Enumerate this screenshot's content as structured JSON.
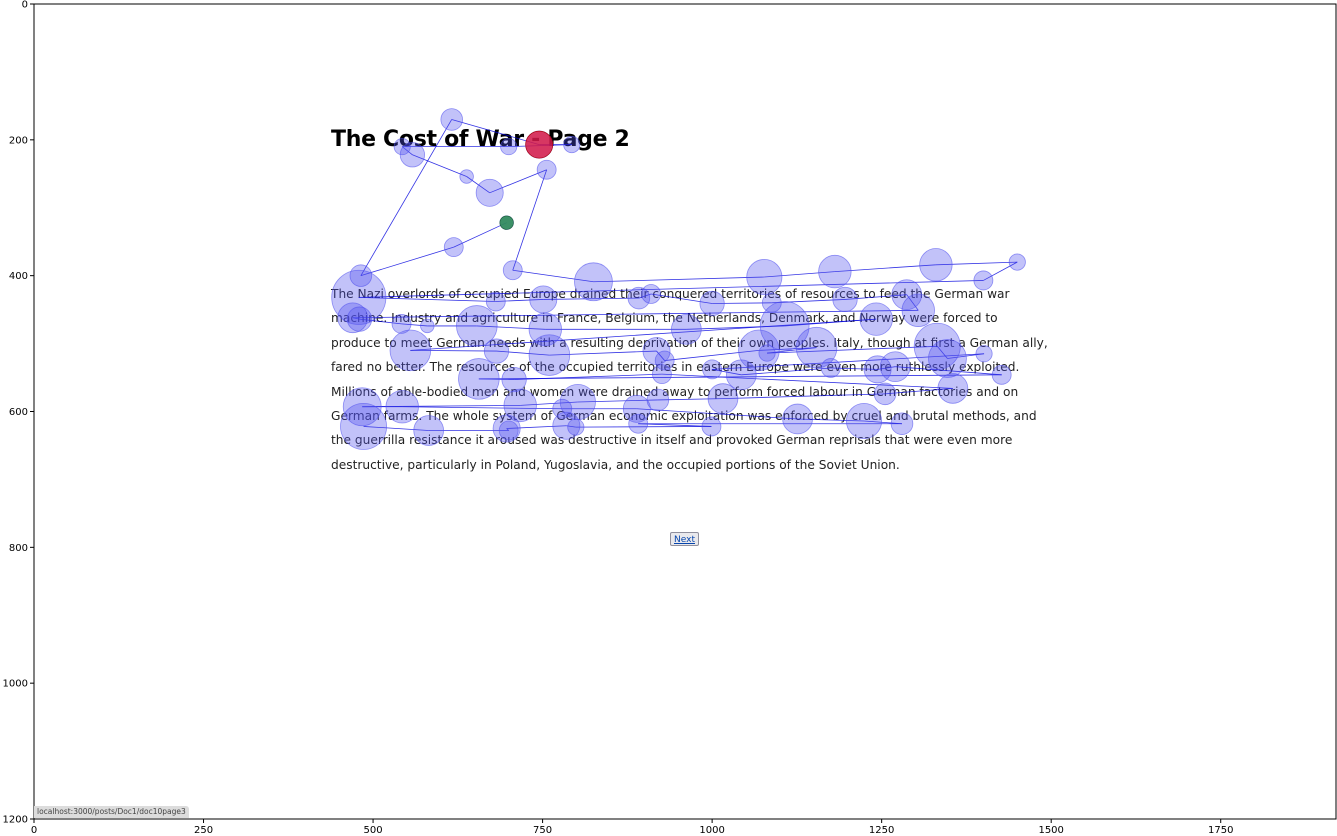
{
  "page": {
    "title": "The Cost of War - Page 2",
    "paragraph": "The Nazi overlords of occupied Europe drained their conquered territories of resources to feed the German war machine. Industry and agriculture in France, Belgium, the Netherlands, Denmark, and Norway were forced to produce to meet German needs with a resulting deprivation of their own peoples. Italy, though at first a German ally, fared no better. The resources of the occupied territories in eastern Europe were even more ruthlessly exploited. Millions of able-bodied men and women were drained away to perform forced labour in German factories and on German farms. The whole system of German economic exploitation was enforced by cruel and brutal methods, and the guerrilla resistance it aroused was destructive in itself and provoked German reprisals that were even more destructive, particularly in Poland, Yugoslavia, and the occupied portions of the Soviet Union.",
    "next_label": "Next"
  },
  "status_bar": {
    "url": "localhost:3000/posts/Doc1/doc10page3"
  },
  "colors": {
    "fixation": "#5050ee",
    "start": "#2e8b57",
    "end": "#dc143c",
    "path": "#0000dd"
  },
  "chart_data": {
    "type": "scatter",
    "x_ticks": [
      "0",
      "250",
      "500",
      "750",
      "1000",
      "1250",
      "1500",
      "1750"
    ],
    "y_ticks": [
      "0",
      "200",
      "400",
      "600",
      "800",
      "1000",
      "1200"
    ],
    "xlim": [
      0,
      1920
    ],
    "ylim": [
      1200,
      0
    ],
    "start": {
      "x": 697,
      "y": 322,
      "r": 10
    },
    "end": {
      "x": 745,
      "y": 207,
      "r": 20
    },
    "fixations": [
      {
        "x": 697,
        "y": 322,
        "r": 10
      },
      {
        "x": 619,
        "y": 358,
        "r": 14
      },
      {
        "x": 482,
        "y": 400,
        "r": 16
      },
      {
        "x": 616,
        "y": 170,
        "r": 16
      },
      {
        "x": 745,
        "y": 207,
        "r": 20
      },
      {
        "x": 793,
        "y": 207,
        "r": 12
      },
      {
        "x": 700,
        "y": 210,
        "r": 12
      },
      {
        "x": 543,
        "y": 210,
        "r": 12
      },
      {
        "x": 558,
        "y": 222,
        "r": 18
      },
      {
        "x": 638,
        "y": 254,
        "r": 10
      },
      {
        "x": 672,
        "y": 278,
        "r": 20
      },
      {
        "x": 756,
        "y": 244,
        "r": 14
      },
      {
        "x": 706,
        "y": 392,
        "r": 14
      },
      {
        "x": 825,
        "y": 409,
        "r": 28
      },
      {
        "x": 1077,
        "y": 402,
        "r": 26
      },
      {
        "x": 1181,
        "y": 394,
        "r": 24
      },
      {
        "x": 1330,
        "y": 384,
        "r": 24
      },
      {
        "x": 1450,
        "y": 380,
        "r": 12
      },
      {
        "x": 1400,
        "y": 407,
        "r": 14
      },
      {
        "x": 479,
        "y": 432,
        "r": 40
      },
      {
        "x": 681,
        "y": 438,
        "r": 14
      },
      {
        "x": 751,
        "y": 435,
        "r": 20
      },
      {
        "x": 892,
        "y": 433,
        "r": 16
      },
      {
        "x": 910,
        "y": 427,
        "r": 14
      },
      {
        "x": 1000,
        "y": 441,
        "r": 18
      },
      {
        "x": 1088,
        "y": 440,
        "r": 14
      },
      {
        "x": 1196,
        "y": 435,
        "r": 18
      },
      {
        "x": 1287,
        "y": 428,
        "r": 22
      },
      {
        "x": 1304,
        "y": 451,
        "r": 24
      },
      {
        "x": 470,
        "y": 462,
        "r": 22
      },
      {
        "x": 480,
        "y": 464,
        "r": 18
      },
      {
        "x": 542,
        "y": 471,
        "r": 14
      },
      {
        "x": 580,
        "y": 474,
        "r": 10
      },
      {
        "x": 653,
        "y": 474,
        "r": 30
      },
      {
        "x": 754,
        "y": 479,
        "r": 24
      },
      {
        "x": 962,
        "y": 479,
        "r": 22
      },
      {
        "x": 1107,
        "y": 474,
        "r": 36
      },
      {
        "x": 1242,
        "y": 464,
        "r": 24
      },
      {
        "x": 555,
        "y": 510,
        "r": 30
      },
      {
        "x": 682,
        "y": 511,
        "r": 18
      },
      {
        "x": 760,
        "y": 517,
        "r": 30
      },
      {
        "x": 918,
        "y": 511,
        "r": 20
      },
      {
        "x": 930,
        "y": 525,
        "r": 14
      },
      {
        "x": 1069,
        "y": 510,
        "r": 30
      },
      {
        "x": 1154,
        "y": 506,
        "r": 30
      },
      {
        "x": 1081,
        "y": 514,
        "r": 12
      },
      {
        "x": 1332,
        "y": 504,
        "r": 34
      },
      {
        "x": 1347,
        "y": 522,
        "r": 28
      },
      {
        "x": 1401,
        "y": 515,
        "r": 12
      },
      {
        "x": 1000,
        "y": 538,
        "r": 14
      },
      {
        "x": 1043,
        "y": 546,
        "r": 22
      },
      {
        "x": 1175,
        "y": 536,
        "r": 14
      },
      {
        "x": 1244,
        "y": 538,
        "r": 20
      },
      {
        "x": 1270,
        "y": 534,
        "r": 22
      },
      {
        "x": 1427,
        "y": 546,
        "r": 14
      },
      {
        "x": 656,
        "y": 552,
        "r": 30
      },
      {
        "x": 708,
        "y": 553,
        "r": 18
      },
      {
        "x": 926,
        "y": 545,
        "r": 14
      },
      {
        "x": 1355,
        "y": 566,
        "r": 22
      },
      {
        "x": 1255,
        "y": 574,
        "r": 16
      },
      {
        "x": 1016,
        "y": 581,
        "r": 22
      },
      {
        "x": 920,
        "y": 583,
        "r": 16
      },
      {
        "x": 802,
        "y": 586,
        "r": 26
      },
      {
        "x": 717,
        "y": 591,
        "r": 24
      },
      {
        "x": 484,
        "y": 593,
        "r": 28
      },
      {
        "x": 543,
        "y": 593,
        "r": 24
      },
      {
        "x": 779,
        "y": 596,
        "r": 14
      },
      {
        "x": 889,
        "y": 596,
        "r": 20
      },
      {
        "x": 1126,
        "y": 611,
        "r": 22
      },
      {
        "x": 1224,
        "y": 614,
        "r": 26
      },
      {
        "x": 1280,
        "y": 618,
        "r": 16
      },
      {
        "x": 891,
        "y": 618,
        "r": 14
      },
      {
        "x": 999,
        "y": 622,
        "r": 14
      },
      {
        "x": 799,
        "y": 623,
        "r": 12
      },
      {
        "x": 785,
        "y": 621,
        "r": 20
      },
      {
        "x": 697,
        "y": 625,
        "r": 20
      },
      {
        "x": 700,
        "y": 628,
        "r": 14
      },
      {
        "x": 582,
        "y": 628,
        "r": 22
      },
      {
        "x": 486,
        "y": 622,
        "r": 34
      }
    ]
  }
}
